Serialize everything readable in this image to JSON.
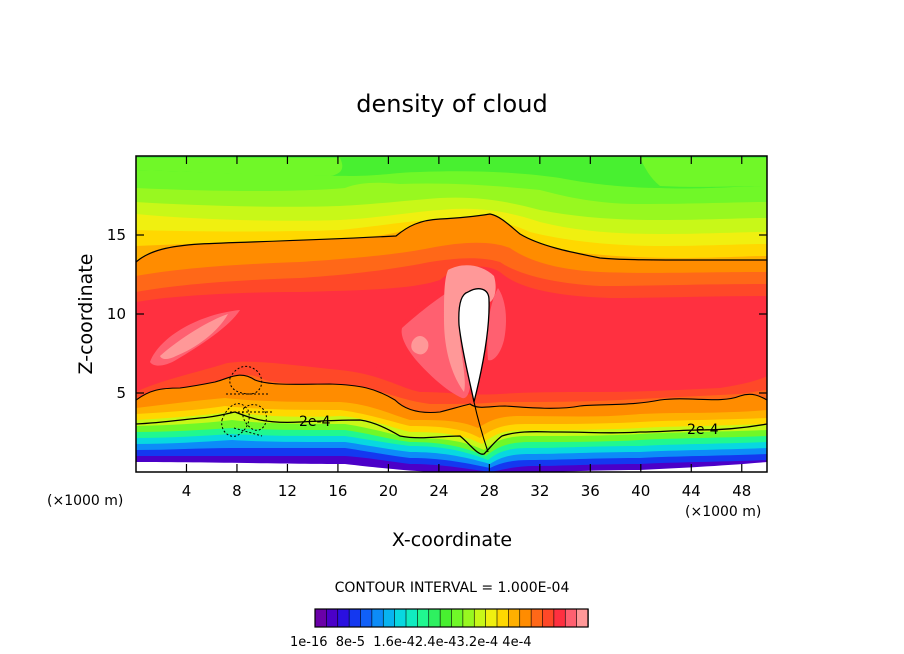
{
  "chart_data": {
    "type": "heatmap",
    "title": "density of cloud",
    "xlabel": "X-coordinate",
    "ylabel": "Z-coordinate",
    "x_unit": "(×1000 m)",
    "x_unit_right": "(×1000 m)",
    "xlim": [
      0,
      50
    ],
    "ylim": [
      0,
      20
    ],
    "x_ticks": [
      4,
      8,
      12,
      16,
      20,
      24,
      28,
      32,
      36,
      40,
      44,
      48
    ],
    "y_ticks": [
      5,
      10,
      15
    ],
    "contour_interval_text": "CONTOUR INTERVAL = 1.000E-04",
    "contour_labels": [
      {
        "text": "2e-4",
        "x": 15.0,
        "z": 3.3
      },
      {
        "text": "2e-4",
        "x": 43.0,
        "z": 2.6
      }
    ],
    "colorbar": {
      "n_levels": 24,
      "labels": [
        "1e-16",
        "8e-5",
        "1.6e-4",
        "2.4e-4",
        "3.2e-4",
        "4e-4"
      ],
      "label_text": "1e-16  8e-5  1.6e-42.4e-43.2e-4 4e-4",
      "colors": [
        "#6a00a8",
        "#4b00c8",
        "#2a10e0",
        "#1438f0",
        "#1060f8",
        "#0c8cf8",
        "#08b4f0",
        "#08d8e0",
        "#10ecc0",
        "#20f890",
        "#2ef060",
        "#48f030",
        "#70f828",
        "#98f820",
        "#c8f818",
        "#f0f010",
        "#ffd800",
        "#ffb000",
        "#ff8c00",
        "#ff6818",
        "#ff4828",
        "#ff3040",
        "#ff6070",
        "#ff9898"
      ]
    },
    "bands": [
      {
        "level_range": "top",
        "description": "green above 17 km"
      },
      {
        "level_range": "peak",
        "max_region": {
          "x": [
            25.5,
            28.5
          ],
          "z": [
            6,
            11.5
          ]
        }
      }
    ]
  }
}
